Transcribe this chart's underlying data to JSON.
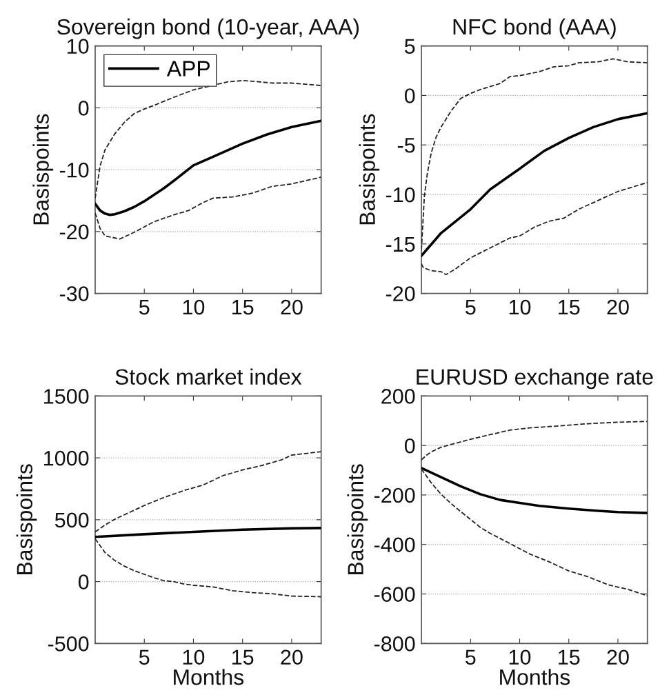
{
  "chart_data": [
    {
      "type": "line",
      "title": "Sovereign bond (10-year, AAA)",
      "ylabel": "Basispoints",
      "xlim": [
        0,
        23
      ],
      "xticks": [
        5,
        10,
        15,
        20
      ],
      "ylim": [
        -30,
        10
      ],
      "yticks": [
        -30,
        -20,
        -10,
        0,
        10
      ],
      "grid": "y",
      "legend": "top left",
      "series": [
        {
          "name": "APP",
          "color": "#000000",
          "line_style": "solid",
          "x": [
            0,
            0.5,
            1,
            1.5,
            2,
            3,
            4,
            5,
            7,
            8,
            10,
            12,
            15,
            17.5,
            20,
            23
          ],
          "values": [
            -15.5,
            -16.6,
            -17.1,
            -17.3,
            -17.2,
            -16.7,
            -16.0,
            -15.1,
            -13.0,
            -11.8,
            -9.3,
            -7.9,
            -5.8,
            -4.3,
            -3.1,
            -2.1
          ]
        },
        {
          "color": "#222222",
          "line_style": "dashed",
          "x": [
            0,
            0.5,
            1,
            2,
            3,
            4,
            5,
            6,
            8,
            10,
            13.5,
            15,
            16,
            18,
            20,
            23
          ],
          "values": [
            -14.6,
            -9.4,
            -6.8,
            -4.2,
            -2.3,
            -0.9,
            -0.2,
            0.4,
            1.7,
            2.9,
            4.2,
            4.4,
            4.3,
            4.0,
            4.0,
            3.6
          ]
        },
        {
          "color": "#222222",
          "line_style": "dashed",
          "x": [
            0,
            0.5,
            1,
            2.5,
            4,
            6,
            8,
            9.5,
            11,
            12,
            14,
            16,
            18,
            20,
            23
          ],
          "values": [
            -17.0,
            -19.5,
            -20.7,
            -21.2,
            -20.1,
            -18.4,
            -17.3,
            -16.6,
            -15.3,
            -14.6,
            -14.4,
            -13.8,
            -12.7,
            -12.3,
            -11.2
          ]
        }
      ]
    },
    {
      "type": "line",
      "title": "NFC bond (AAA)",
      "ylabel": "Basispoints",
      "xlim": [
        0,
        23
      ],
      "xticks": [
        5,
        10,
        15,
        20
      ],
      "ylim": [
        -20,
        5
      ],
      "yticks": [
        -20,
        -15,
        -10,
        -5,
        0,
        5
      ],
      "grid": "y",
      "series": [
        {
          "color": "#000000",
          "line_style": "solid",
          "x": [
            0,
            2,
            5,
            7,
            10,
            12.5,
            15,
            17.5,
            20,
            23
          ],
          "values": [
            -16.2,
            -13.9,
            -11.5,
            -9.5,
            -7.4,
            -5.6,
            -4.3,
            -3.2,
            -2.4,
            -1.8
          ]
        },
        {
          "color": "#222222",
          "line_style": "dashed",
          "x": [
            0,
            0.3,
            0.6,
            1,
            1.5,
            2,
            3,
            4,
            5,
            6,
            7,
            8,
            9,
            10,
            12,
            13.5,
            15,
            16,
            18,
            19.5,
            21,
            23
          ],
          "values": [
            -15.6,
            -10.2,
            -7.9,
            -5.8,
            -4.2,
            -3.2,
            -1.6,
            -0.3,
            0.2,
            0.6,
            0.9,
            1.2,
            1.9,
            2.0,
            2.4,
            2.9,
            3.0,
            3.3,
            3.4,
            3.7,
            3.4,
            3.3
          ]
        },
        {
          "color": "#222222",
          "line_style": "dashed",
          "x": [
            0,
            0.2,
            1,
            2,
            2.5,
            3.5,
            5,
            7,
            9,
            10,
            11.5,
            13,
            14.5,
            16,
            18,
            20,
            23
          ],
          "values": [
            -17.0,
            -17.4,
            -17.7,
            -17.8,
            -18.1,
            -17.5,
            -16.4,
            -15.4,
            -14.4,
            -14.2,
            -13.3,
            -12.7,
            -12.4,
            -11.5,
            -10.6,
            -9.7,
            -8.8
          ]
        }
      ]
    },
    {
      "type": "line",
      "title": "Stock market index",
      "xlabel": "Months",
      "ylabel": "Basispoints",
      "xlim": [
        0,
        23
      ],
      "xticks": [
        5,
        10,
        15,
        20
      ],
      "ylim": [
        -500,
        1500
      ],
      "yticks": [
        -500,
        0,
        500,
        1000,
        1500
      ],
      "grid": "y",
      "series": [
        {
          "color": "#000000",
          "line_style": "solid",
          "x": [
            0,
            5,
            10,
            15,
            20,
            23
          ],
          "values": [
            361,
            383,
            402,
            420,
            430,
            433
          ]
        },
        {
          "color": "#222222",
          "line_style": "dashed",
          "x": [
            0,
            1,
            2,
            3,
            5,
            7,
            9,
            11,
            13,
            15,
            17,
            19,
            20,
            23
          ],
          "values": [
            402,
            457,
            504,
            541,
            615,
            680,
            735,
            781,
            856,
            902,
            939,
            985,
            1022,
            1050
          ]
        },
        {
          "color": "#222222",
          "line_style": "dashed",
          "x": [
            0,
            1,
            2,
            3,
            4,
            5,
            6,
            7,
            8,
            9,
            10,
            12,
            14,
            16,
            18,
            20,
            23
          ],
          "values": [
            346,
            235,
            170,
            124,
            87,
            59,
            31,
            7,
            0,
            -19,
            -30,
            -43,
            -74,
            -89,
            -98,
            -117,
            -122
          ]
        }
      ]
    },
    {
      "type": "line",
      "title": "EURUSD exchange rate",
      "xlabel": "Months",
      "ylabel": "Basispoints",
      "xlim": [
        0,
        23
      ],
      "xticks": [
        5,
        10,
        15,
        20
      ],
      "ylim": [
        -800,
        200
      ],
      "yticks": [
        -800,
        -600,
        -400,
        -200,
        0,
        200
      ],
      "grid": "y",
      "series": [
        {
          "color": "#000000",
          "line_style": "solid",
          "x": [
            0,
            2,
            4,
            6,
            8,
            10,
            12,
            15,
            18,
            20,
            23
          ],
          "values": [
            -91,
            -128,
            -165,
            -197,
            -220,
            -232,
            -244,
            -255,
            -264,
            -269,
            -273
          ]
        },
        {
          "color": "#222222",
          "line_style": "dashed",
          "x": [
            0,
            0.5,
            1,
            2,
            3,
            5,
            7,
            9,
            11,
            14,
            17,
            20,
            23
          ],
          "values": [
            -58,
            -40,
            -26,
            -7,
            4,
            25,
            44,
            62,
            71,
            79,
            88,
            94,
            97
          ]
        },
        {
          "color": "#222222",
          "line_style": "dashed",
          "x": [
            0,
            1,
            2,
            3,
            4,
            5,
            6,
            7,
            9,
            11,
            13,
            15,
            17,
            19,
            21,
            23
          ],
          "values": [
            -95,
            -151,
            -197,
            -234,
            -267,
            -299,
            -331,
            -355,
            -396,
            -438,
            -470,
            -507,
            -531,
            -563,
            -581,
            -607
          ]
        }
      ]
    }
  ]
}
